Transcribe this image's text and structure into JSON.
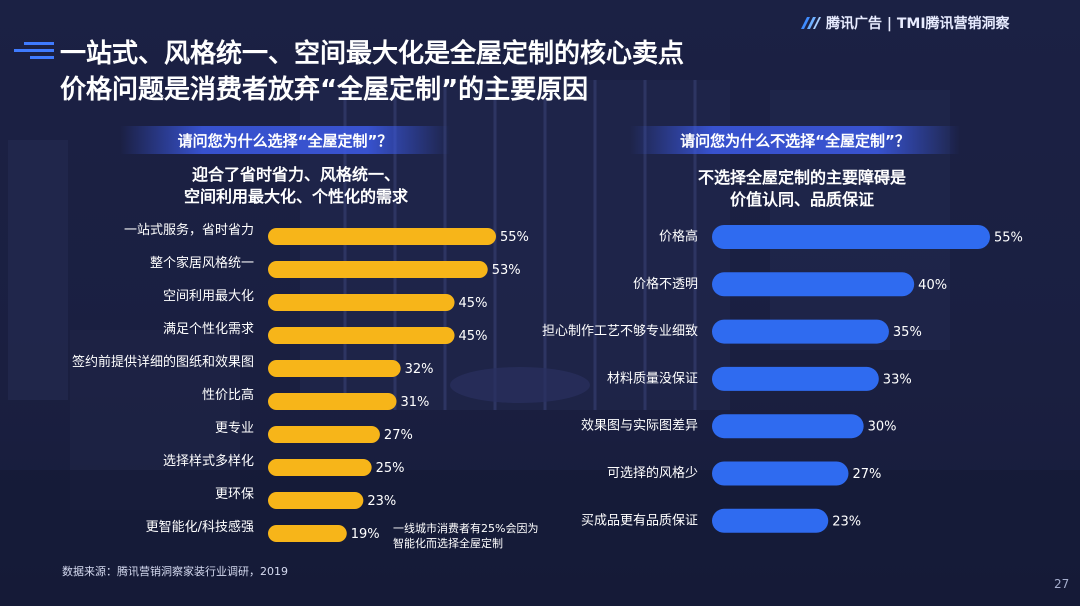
{
  "header": {
    "logo_text": "腾讯广告 | TMI腾讯营销洞察",
    "title_line1": "一站式、风格统一、空间最大化是全屋定制的核心卖点",
    "title_line2": "价格问题是消费者放弃“全屋定制”的主要原因"
  },
  "left": {
    "question": "请问您为什么选择“全屋定制”？",
    "subtitle_line1": "迎合了省时省力、风格统一、",
    "subtitle_line2": "空间利用最大化、个性化的需求",
    "annotation_line1": "一线城市消费者有25%会因为",
    "annotation_line2": "智能化而选择全屋定制"
  },
  "right": {
    "question": "请问您为什么不选择“全屋定制”？",
    "subtitle_line1": "不选择全屋定制的主要障碍是",
    "subtitle_line2": "价值认同、品质保证"
  },
  "footer": {
    "source": "数据来源：腾讯营销洞察家装行业调研，2019",
    "page": "27"
  },
  "colors": {
    "left_bar": "#f7b519",
    "right_bar": "#2f6bf0"
  },
  "chart_data": [
    {
      "type": "bar",
      "orientation": "horizontal",
      "title": "请问您为什么选择“全屋定制”？",
      "categories": [
        "一站式服务，省时省力",
        "整个家居风格统一",
        "空间利用最大化",
        "满足个性化需求",
        "签约前提供详细的图纸和效果图",
        "性价比高",
        "更专业",
        "选择样式多样化",
        "更环保",
        "更智能化/科技感强"
      ],
      "values": [
        55,
        53,
        45,
        45,
        32,
        31,
        27,
        25,
        23,
        19
      ],
      "labels": [
        "55%",
        "53%",
        "45%",
        "45%",
        "32%",
        "31%",
        "27%",
        "25%",
        "23%",
        "19%"
      ],
      "xlim": [
        0,
        55
      ]
    },
    {
      "type": "bar",
      "orientation": "horizontal",
      "title": "请问您为什么不选择“全屋定制”？",
      "categories": [
        "价格高",
        "价格不透明",
        "担心制作工艺不够专业细致",
        "材料质量没保证",
        "效果图与实际图差异",
        "可选择的风格少",
        "买成品更有品质保证"
      ],
      "values": [
        55,
        40,
        35,
        33,
        30,
        27,
        23
      ],
      "labels": [
        "55%",
        "40%",
        "35%",
        "33%",
        "30%",
        "27%",
        "23%"
      ],
      "xlim": [
        0,
        55
      ]
    }
  ]
}
